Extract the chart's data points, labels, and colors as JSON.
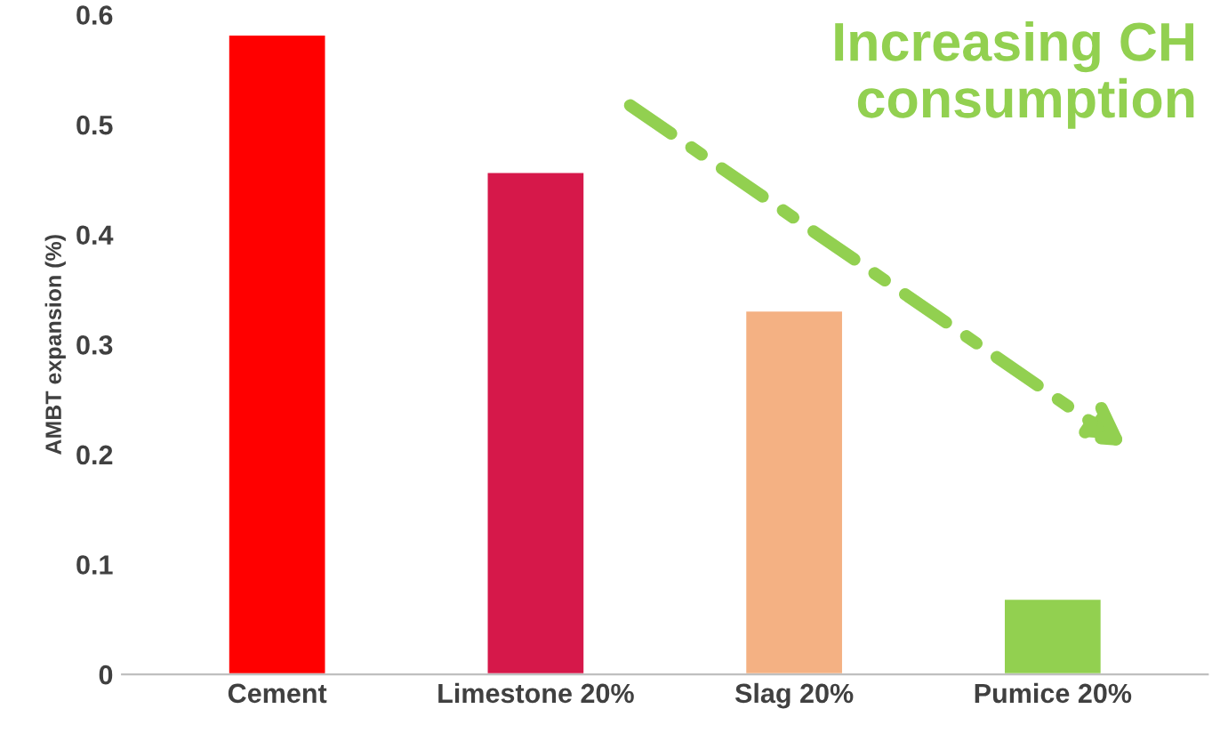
{
  "chart_data": {
    "type": "bar",
    "ylabel": "AMBT expansion (%)",
    "categories": [
      "Cement",
      "Limestone 20%",
      "Slag 20%",
      "Pumice 20%"
    ],
    "values": [
      0.582,
      0.457,
      0.331,
      0.069
    ],
    "colors": [
      "#ff0000",
      "#d6184a",
      "#f4b183",
      "#92d050"
    ],
    "ylim": [
      0,
      0.6
    ],
    "yticks": [
      0,
      0.1,
      0.2,
      0.3,
      0.4,
      0.5,
      0.6
    ],
    "grid": false,
    "annotations": [
      "Increasing CH\nconsumption"
    ]
  }
}
